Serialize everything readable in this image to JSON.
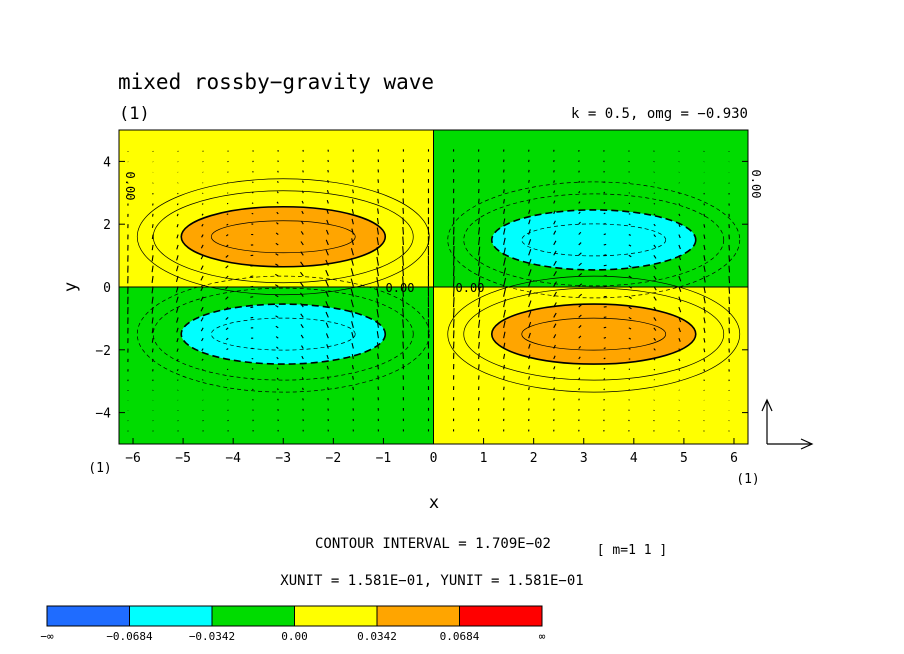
{
  "chart_data": {
    "type": "heatmap",
    "title": "mixed rossby−gravity wave",
    "panel_label": "(1)",
    "subtitle": "k = 0.5, omg = −0.930",
    "xlabel": "x",
    "ylabel": "y",
    "xlim": [
      -6.28,
      6.28
    ],
    "ylim": [
      -5,
      5
    ],
    "x_ticks": [
      "−6",
      "−5",
      "−4",
      "−3",
      "−2",
      "−1",
      "0",
      "1",
      "2",
      "3",
      "4",
      "5",
      "6"
    ],
    "y_ticks": [
      "4",
      "2",
      "0",
      "−2",
      "−4"
    ],
    "x_tick_values": [
      -6,
      -5,
      -4,
      -3,
      -2,
      -1,
      0,
      1,
      2,
      3,
      4,
      5,
      6
    ],
    "y_tick_values": [
      4,
      2,
      0,
      -2,
      -4
    ],
    "x_corner_left": "(1)",
    "x_corner_right": "(1)",
    "contour_labels": [
      "0.00",
      "0.00",
      "0.00",
      "0.00"
    ],
    "contour_interval_text": "CONTOUR INTERVAL = 1.709E−02",
    "m_text": "[ m=1 1 ]",
    "units_text": "XUNIT = 1.581E−01, YUNIT = 1.581E−01",
    "colorbar": {
      "colors": [
        "#1f6cff",
        "#00ffff",
        "#00dc00",
        "#ffff00",
        "#ffa500",
        "#ff0000"
      ],
      "labels": [
        "−∞",
        "−0.0684",
        "−0.0342",
        "0.00",
        "0.0342",
        "0.0684",
        "∞"
      ]
    },
    "colors": {
      "positive_background": "#ffff00",
      "negative_background": "#00dc00",
      "positive_peak": "#ffa500",
      "negative_peak": "#00ffff"
    }
  }
}
